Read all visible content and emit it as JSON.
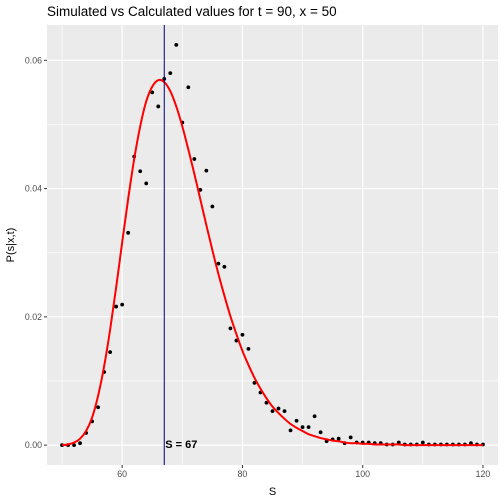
{
  "chart_data": {
    "type": "scatter",
    "title": "Simulated vs Calculated values for t = 90, x = 50",
    "xlabel": "S",
    "ylabel": "P(s|x,t)",
    "xlim": [
      47.5,
      122.5
    ],
    "ylim": [
      -0.0031,
      0.0655
    ],
    "x_ticks": [
      60,
      80,
      100,
      120
    ],
    "x_tick_labels": [
      "60",
      "80",
      "100",
      "120"
    ],
    "y_ticks": [
      0.0,
      0.02,
      0.04,
      0.06
    ],
    "y_tick_labels": [
      "0.00",
      "0.02",
      "0.04",
      "0.06"
    ],
    "grid": true,
    "background": "#ebebeb",
    "grid_color": "#ffffff",
    "series": [
      {
        "kind": "points",
        "color": "#000000",
        "x": [
          50,
          51,
          52,
          53,
          54,
          55,
          56,
          57,
          58,
          59,
          60,
          61,
          62,
          63,
          64,
          65,
          66,
          67,
          68,
          69,
          70,
          71,
          72,
          73,
          74,
          75,
          76,
          77,
          78,
          79,
          80,
          81,
          82,
          83,
          84,
          85,
          86,
          87,
          88,
          89,
          90,
          91,
          92,
          93,
          94,
          95,
          96,
          97,
          98,
          99,
          100,
          101,
          102,
          103,
          104,
          105,
          106,
          107,
          108,
          109,
          110,
          111,
          112,
          113,
          114,
          115,
          116,
          117,
          118,
          119,
          120
        ],
        "y": [
          0.0,
          0.0,
          0.0,
          0.0003,
          0.0019,
          0.0037,
          0.0059,
          0.0114,
          0.0145,
          0.0216,
          0.0219,
          0.0331,
          0.045,
          0.0427,
          0.0408,
          0.055,
          0.0528,
          0.0571,
          0.058,
          0.0624,
          0.0503,
          0.0558,
          0.0446,
          0.0398,
          0.0428,
          0.0372,
          0.0283,
          0.0278,
          0.0182,
          0.0163,
          0.0172,
          0.015,
          0.0097,
          0.0082,
          0.0066,
          0.0053,
          0.0057,
          0.0053,
          0.0023,
          0.0038,
          0.0028,
          0.0028,
          0.0045,
          0.002,
          0.0006,
          0.0009,
          0.001,
          0.0003,
          0.0012,
          0.0004,
          0.0004,
          0.0004,
          0.0003,
          0.0003,
          0.0001,
          0.0001,
          0.0004,
          0.0001,
          0.0001,
          0.0001,
          0.0004,
          0.0001,
          0.0001,
          0.0001,
          0.0001,
          0.0001,
          0.0001,
          0.0001,
          0.0003,
          0.0001,
          0.0001
        ]
      },
      {
        "kind": "line",
        "color": "#ff0000",
        "x": [
          50,
          51,
          52,
          53,
          54,
          55,
          56,
          57,
          58,
          59,
          60,
          61,
          62,
          63,
          64,
          65,
          66,
          67,
          68,
          69,
          70,
          71,
          72,
          73,
          74,
          75,
          76,
          77,
          78,
          79,
          80,
          81,
          82,
          83,
          84,
          85,
          86,
          87,
          88,
          89,
          90,
          91,
          92,
          93,
          94,
          95,
          96,
          97,
          98,
          99,
          100,
          101,
          102,
          103,
          104,
          105,
          106,
          107,
          108,
          109,
          110,
          111,
          112,
          113,
          114,
          115,
          116,
          117,
          118,
          119,
          120
        ],
        "y": [
          0.0,
          0.0001,
          0.0004,
          0.001,
          0.0022,
          0.0043,
          0.0077,
          0.0123,
          0.018,
          0.0246,
          0.0316,
          0.0384,
          0.0446,
          0.0497,
          0.0536,
          0.0559,
          0.0569,
          0.0566,
          0.0552,
          0.0528,
          0.0497,
          0.0461,
          0.0423,
          0.0383,
          0.0343,
          0.0304,
          0.0267,
          0.0233,
          0.0201,
          0.0173,
          0.0147,
          0.0125,
          0.0105,
          0.0088,
          0.0073,
          0.006,
          0.005,
          0.0041,
          0.0033,
          0.0027,
          0.0022,
          0.0017,
          0.0014,
          0.0011,
          0.0009,
          0.0007,
          0.0006,
          0.0004,
          0.0003,
          0.0003,
          0.0002,
          0.0002,
          0.0001,
          0.0001,
          0.0001,
          0.0001,
          0.0001,
          0.0,
          0.0,
          0.0,
          0.0,
          0.0,
          0.0,
          0.0,
          0.0,
          0.0,
          0.0,
          0.0,
          0.0,
          0.0,
          0.0
        ]
      }
    ],
    "vline": {
      "x": 67,
      "color": "#000080"
    },
    "annotation": {
      "text": "S = 67",
      "x": 67,
      "y": 0.0
    }
  }
}
